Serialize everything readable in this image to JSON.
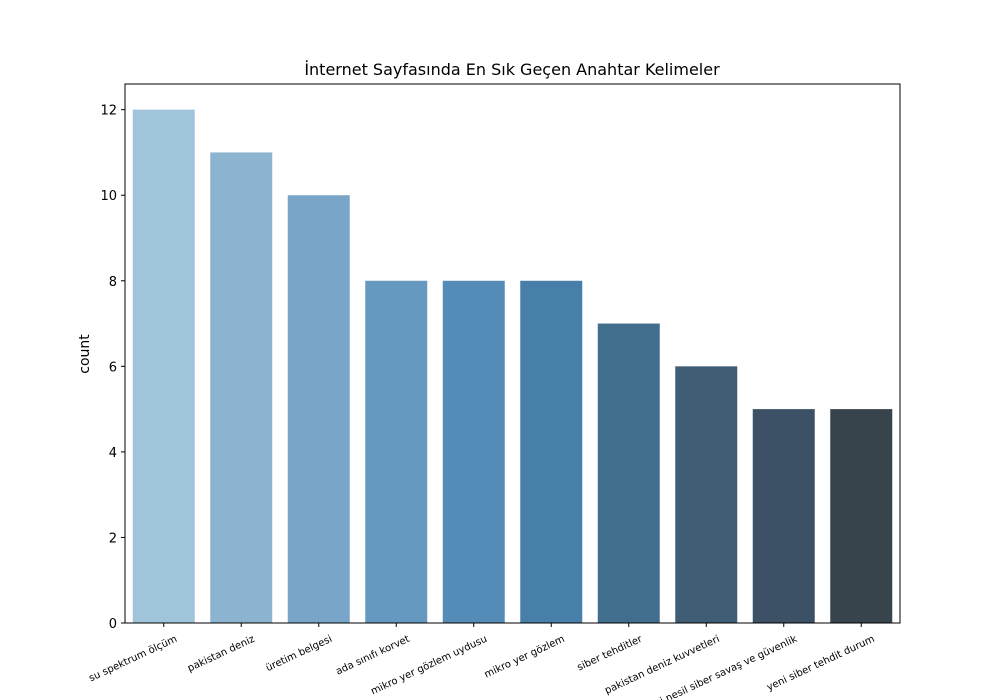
{
  "chart_data": {
    "type": "bar",
    "title": "İnternet Sayfasında En Sık Geçen Anahtar Kelimeler",
    "xlabel": "",
    "ylabel": "count",
    "ylim": [
      0,
      12.6
    ],
    "yticks": [
      0,
      2,
      4,
      6,
      8,
      10,
      12
    ],
    "grid": false,
    "legend": "none",
    "categories": [
      "su spektrum ölçüm",
      "pakistan deniz",
      "üretim belgesi",
      "ada sınıfı korvet",
      "mikro yer gözlem uydusu",
      "mikro yer gözlem",
      "siber tehditler",
      "pakistan deniz kuvvetleri",
      "yeni nesil siber savaş ve güvenlik",
      "yeni siber tehdit durum"
    ],
    "values": [
      12,
      11,
      10,
      8,
      8,
      8,
      7,
      6,
      5,
      5
    ],
    "colors": [
      "#a0c4da",
      "#8cb3d0",
      "#79a6c8",
      "#6699bf",
      "#548bb7",
      "#487fa8",
      "#416e8d",
      "#3f5d75",
      "#3c5066",
      "#37444b"
    ]
  }
}
